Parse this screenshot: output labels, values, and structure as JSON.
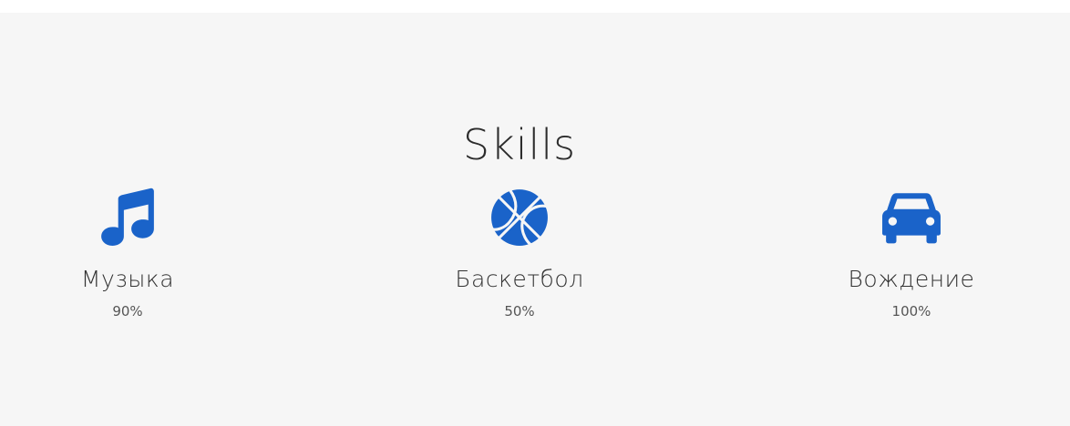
{
  "section": {
    "title": "Skills"
  },
  "colors": {
    "accent": "#1a63c9",
    "background": "#f6f6f6",
    "text": "#333333"
  },
  "skills": [
    {
      "name": "Музыка",
      "level": "90%",
      "icon": "music-note-icon"
    },
    {
      "name": "Баскетбол",
      "level": "50%",
      "icon": "basketball-icon"
    },
    {
      "name": "Вождение",
      "level": "100%",
      "icon": "car-icon"
    }
  ]
}
